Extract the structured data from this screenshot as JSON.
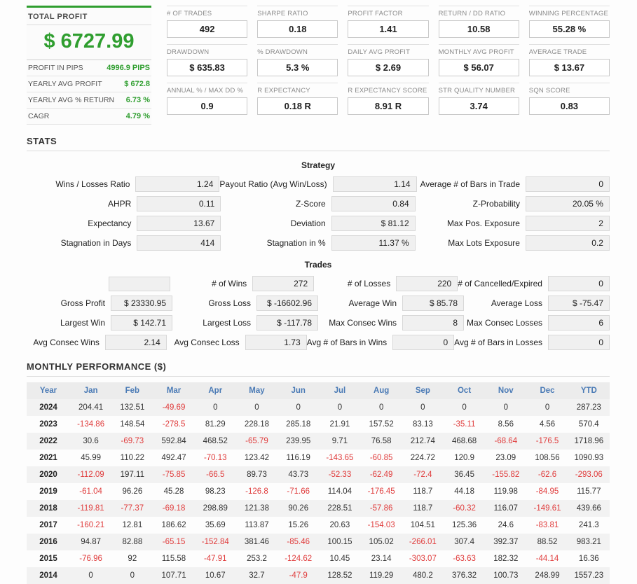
{
  "colors": {
    "green": "#2f9e2f",
    "red": "#e03c3c",
    "blue": "#4a7ab5"
  },
  "summary": {
    "title": "TOTAL PROFIT",
    "total": "$ 6727.99",
    "rows": [
      {
        "label": "PROFIT IN PIPS",
        "value": "4996.9 PIPS"
      },
      {
        "label": "YEARLY AVG PROFIT",
        "value": "$ 672.8"
      },
      {
        "label": "YEARLY AVG % RETURN",
        "value": "6.73 %"
      },
      {
        "label": "CAGR",
        "value": "4.79 %"
      }
    ]
  },
  "metric_grid": [
    [
      {
        "label": "# OF TRADES",
        "value": "492"
      },
      {
        "label": "SHARPE RATIO",
        "value": "0.18"
      },
      {
        "label": "PROFIT FACTOR",
        "value": "1.41"
      },
      {
        "label": "RETURN / DD RATIO",
        "value": "10.58"
      },
      {
        "label": "WINNING PERCENTAGE",
        "value": "55.28 %"
      }
    ],
    [
      {
        "label": "DRAWDOWN",
        "value": "$ 635.83"
      },
      {
        "label": "% DRAWDOWN",
        "value": "5.3 %"
      },
      {
        "label": "DAILY AVG PROFIT",
        "value": "$ 2.69"
      },
      {
        "label": "MONTHLY AVG PROFIT",
        "value": "$ 56.07"
      },
      {
        "label": "AVERAGE TRADE",
        "value": "$ 13.67"
      }
    ],
    [
      {
        "label": "ANNUAL % / MAX DD %",
        "value": "0.9"
      },
      {
        "label": "R EXPECTANCY",
        "value": "0.18 R"
      },
      {
        "label": "R EXPECTANCY SCORE",
        "value": "8.91 R"
      },
      {
        "label": "STR QUALITY NUMBER",
        "value": "3.74"
      },
      {
        "label": "SQN SCORE",
        "value": "0.83"
      }
    ]
  ],
  "stats": {
    "section_title": "STATS",
    "strategy_title": "Strategy",
    "strategy_rows": [
      [
        {
          "label": "Wins / Losses Ratio",
          "value": "1.24"
        },
        {
          "label": "Payout Ratio (Avg Win/Loss)",
          "value": "1.14"
        },
        {
          "label": "Average # of Bars in Trade",
          "value": "0"
        }
      ],
      [
        {
          "label": "AHPR",
          "value": "0.11"
        },
        {
          "label": "Z-Score",
          "value": "0.84"
        },
        {
          "label": "Z-Probability",
          "value": "20.05 %"
        }
      ],
      [
        {
          "label": "Expectancy",
          "value": "13.67"
        },
        {
          "label": "Deviation",
          "value": "$ 81.12"
        },
        {
          "label": "Max Pos. Exposure",
          "value": "2"
        }
      ],
      [
        {
          "label": "Stagnation in Days",
          "value": "414"
        },
        {
          "label": "Stagnation in %",
          "value": "11.37 %"
        },
        {
          "label": "Max Lots Exposure",
          "value": "0.2"
        }
      ]
    ],
    "trades_title": "Trades",
    "trades_rows": [
      [
        {
          "label": "",
          "value": ""
        },
        {
          "label": "# of Wins",
          "value": "272"
        },
        {
          "label": "# of Losses",
          "value": "220"
        },
        {
          "label": "# of Cancelled/Expired",
          "value": "0"
        }
      ],
      [
        {
          "label": "Gross Profit",
          "value": "$ 23330.95"
        },
        {
          "label": "Gross Loss",
          "value": "$ -16602.96"
        },
        {
          "label": "Average Win",
          "value": "$ 85.78"
        },
        {
          "label": "Average Loss",
          "value": "$ -75.47"
        }
      ],
      [
        {
          "label": "Largest Win",
          "value": "$ 142.71"
        },
        {
          "label": "Largest Loss",
          "value": "$ -117.78"
        },
        {
          "label": "Max Consec Wins",
          "value": "8"
        },
        {
          "label": "Max Consec Losses",
          "value": "6"
        }
      ],
      [
        {
          "label": "Avg Consec Wins",
          "value": "2.14"
        },
        {
          "label": "Avg Consec Loss",
          "value": "1.73"
        },
        {
          "label": "Avg # of Bars in Wins",
          "value": "0"
        },
        {
          "label": "Avg # of Bars in Losses",
          "value": "0"
        }
      ]
    ]
  },
  "monthly": {
    "section_title": "MONTHLY PERFORMANCE ($)",
    "headers": [
      "Year",
      "Jan",
      "Feb",
      "Mar",
      "Apr",
      "May",
      "Jun",
      "Jul",
      "Aug",
      "Sep",
      "Oct",
      "Nov",
      "Dec",
      "YTD"
    ],
    "rows": [
      {
        "year": "2024",
        "values": [
          "204.41",
          "132.51",
          "-49.69",
          "0",
          "0",
          "0",
          "0",
          "0",
          "0",
          "0",
          "0",
          "0",
          "287.23"
        ]
      },
      {
        "year": "2023",
        "values": [
          "-134.86",
          "148.54",
          "-278.5",
          "81.29",
          "228.18",
          "285.18",
          "21.91",
          "157.52",
          "83.13",
          "-35.11",
          "8.56",
          "4.56",
          "570.4"
        ]
      },
      {
        "year": "2022",
        "values": [
          "30.6",
          "-69.73",
          "592.84",
          "468.52",
          "-65.79",
          "239.95",
          "9.71",
          "76.58",
          "212.74",
          "468.68",
          "-68.64",
          "-176.5",
          "1718.96"
        ]
      },
      {
        "year": "2021",
        "values": [
          "45.99",
          "110.22",
          "492.47",
          "-70.13",
          "123.42",
          "116.19",
          "-143.65",
          "-60.85",
          "224.72",
          "120.9",
          "23.09",
          "108.56",
          "1090.93"
        ]
      },
      {
        "year": "2020",
        "values": [
          "-112.09",
          "197.11",
          "-75.85",
          "-66.5",
          "89.73",
          "43.73",
          "-52.33",
          "-62.49",
          "-72.4",
          "36.45",
          "-155.82",
          "-62.6",
          "-293.06"
        ]
      },
      {
        "year": "2019",
        "values": [
          "-61.04",
          "96.26",
          "45.28",
          "98.23",
          "-126.8",
          "-71.66",
          "114.04",
          "-176.45",
          "118.7",
          "44.18",
          "119.98",
          "-84.95",
          "115.77"
        ]
      },
      {
        "year": "2018",
        "values": [
          "-119.81",
          "-77.37",
          "-69.18",
          "298.89",
          "121.38",
          "90.26",
          "228.51",
          "-57.86",
          "118.7",
          "-60.32",
          "116.07",
          "-149.61",
          "439.66"
        ]
      },
      {
        "year": "2017",
        "values": [
          "-160.21",
          "12.81",
          "186.62",
          "35.69",
          "113.87",
          "15.26",
          "20.63",
          "-154.03",
          "104.51",
          "125.36",
          "24.6",
          "-83.81",
          "241.3"
        ]
      },
      {
        "year": "2016",
        "values": [
          "94.87",
          "82.88",
          "-65.15",
          "-152.84",
          "381.46",
          "-85.46",
          "100.15",
          "105.02",
          "-266.01",
          "307.4",
          "392.37",
          "88.52",
          "983.21"
        ]
      },
      {
        "year": "2015",
        "values": [
          "-76.96",
          "92",
          "115.58",
          "-47.91",
          "253.2",
          "-124.62",
          "10.45",
          "23.14",
          "-303.07",
          "-63.63",
          "182.32",
          "-44.14",
          "16.36"
        ]
      },
      {
        "year": "2014",
        "values": [
          "0",
          "0",
          "107.71",
          "10.67",
          "32.7",
          "-47.9",
          "128.52",
          "119.29",
          "480.2",
          "376.32",
          "100.73",
          "248.99",
          "1557.23"
        ]
      }
    ]
  }
}
